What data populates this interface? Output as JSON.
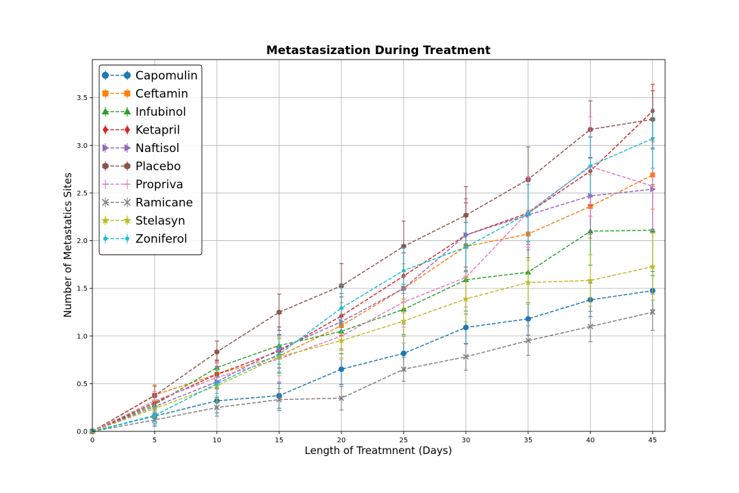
{
  "chart_data": {
    "type": "line",
    "title": "Metastasization During Treatment",
    "xlabel": "Length of Treatmnent (Days)",
    "ylabel": "Number of Metastatics Sites",
    "x": [
      0,
      5,
      10,
      15,
      20,
      25,
      30,
      35,
      40,
      45
    ],
    "xlim": [
      0,
      46
    ],
    "ylim": [
      0,
      3.9
    ],
    "xticks": [
      0,
      5,
      10,
      15,
      20,
      25,
      30,
      35,
      40,
      45
    ],
    "yticks": [
      0.0,
      0.5,
      1.0,
      1.5,
      2.0,
      2.5,
      3.0,
      3.5
    ],
    "ytick_labels": [
      "0.0",
      "0.5",
      "1.0",
      "1.5",
      "2.0",
      "2.5",
      "3.0",
      "3.5"
    ],
    "grid": true,
    "legend_position": "top-left",
    "series": [
      {
        "name": "Capomulin",
        "color": "#1f77b4",
        "marker": "circle",
        "values": [
          0,
          0.16,
          0.32,
          0.375,
          0.652,
          0.818,
          1.09,
          1.18,
          1.38,
          1.476
        ],
        "errors": [
          0,
          0.074,
          0.125,
          0.132,
          0.161,
          0.182,
          0.173,
          0.17,
          0.176,
          0.202
        ]
      },
      {
        "name": "Ceftamin",
        "color": "#ff7f0e",
        "marker": "square",
        "values": [
          0,
          0.38,
          0.6,
          0.79,
          1.11,
          1.5,
          1.94,
          2.07,
          2.36,
          2.69
        ],
        "errors": [
          0,
          0.108,
          0.152,
          0.18,
          0.241,
          0.258,
          0.249,
          0.25,
          0.333,
          0.359
        ]
      },
      {
        "name": "Infubinol",
        "color": "#2ca02c",
        "marker": "triangle",
        "values": [
          0,
          0.28,
          0.67,
          0.9,
          1.05,
          1.28,
          1.59,
          1.67,
          2.1,
          2.11
        ],
        "errors": [
          0,
          0.091,
          0.16,
          0.194,
          0.234,
          0.263,
          0.36,
          0.32,
          0.357,
          0.478
        ]
      },
      {
        "name": "Ketapril",
        "color": "#d62728",
        "marker": "diamond",
        "values": [
          0,
          0.3,
          0.6,
          0.84,
          1.21,
          1.63,
          2.06,
          2.29,
          2.73,
          3.36
        ],
        "errors": [
          0,
          0.098,
          0.142,
          0.175,
          0.2,
          0.242,
          0.337,
          0.33,
          0.359,
          0.28
        ]
      },
      {
        "name": "Naftisol",
        "color": "#9467bd",
        "marker": "triangle-right",
        "values": [
          0,
          0.26,
          0.52,
          0.86,
          1.15,
          1.5,
          2.06,
          2.27,
          2.47,
          2.54
        ],
        "errors": [
          0,
          0.093,
          0.164,
          0.237,
          0.297,
          0.374,
          0.38,
          0.367,
          0.405,
          0.42
        ]
      },
      {
        "name": "Placebo",
        "color": "#8c564b",
        "marker": "hexagon",
        "values": [
          0,
          0.375,
          0.833,
          1.25,
          1.526,
          1.941,
          2.267,
          2.643,
          3.167,
          3.273
        ],
        "errors": [
          0,
          0.1,
          0.115,
          0.19,
          0.235,
          0.265,
          0.3,
          0.341,
          0.3,
          0.3
        ]
      },
      {
        "name": "Propriva",
        "color": "#e377c2",
        "marker": "hline",
        "values": [
          0,
          0.32,
          0.565,
          0.76,
          1.0,
          1.357,
          1.615,
          2.3,
          2.778,
          2.571
        ],
        "errors": [
          0,
          0.1,
          0.166,
          0.24,
          0.23,
          0.264,
          0.31,
          0.373,
          0.52,
          0.463
        ]
      },
      {
        "name": "Ramicane",
        "color": "#7f7f7f",
        "marker": "x",
        "values": [
          0,
          0.12,
          0.25,
          0.333,
          0.348,
          0.652,
          0.782,
          0.952,
          1.1,
          1.25
        ],
        "errors": [
          0,
          0.067,
          0.09,
          0.115,
          0.124,
          0.126,
          0.14,
          0.155,
          0.16,
          0.19
        ]
      },
      {
        "name": "Stelasyn",
        "color": "#bcbd22",
        "marker": "star",
        "values": [
          0,
          0.24,
          0.478,
          0.783,
          0.952,
          1.157,
          1.389,
          1.562,
          1.583,
          1.727
        ],
        "errors": [
          0,
          0.09,
          0.17,
          0.2,
          0.2,
          0.23,
          0.24,
          0.23,
          0.27,
          0.35
        ]
      },
      {
        "name": "Zoniferol",
        "color": "#17becf",
        "marker": "point",
        "values": [
          0,
          0.167,
          0.5,
          0.809,
          1.294,
          1.687,
          1.933,
          2.286,
          2.786,
          3.071
        ],
        "errors": [
          0,
          0.1,
          0.14,
          0.2,
          0.24,
          0.24,
          0.26,
          0.3,
          0.3,
          0.31
        ]
      }
    ]
  }
}
